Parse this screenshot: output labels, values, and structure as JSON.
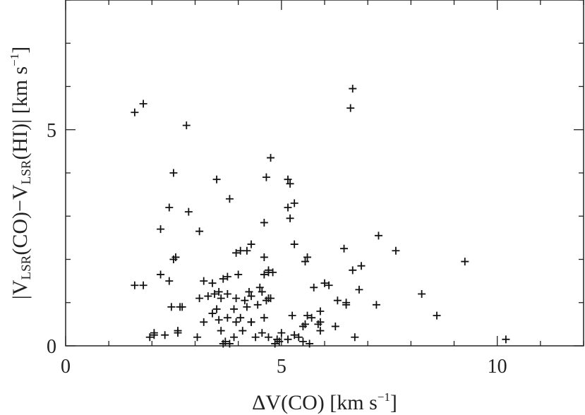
{
  "chart_data": {
    "type": "scatter",
    "title": "",
    "xlabel_parts": {
      "main": "ΔV(CO) [km s",
      "sup": "−1",
      "close": "]"
    },
    "ylabel_parts": {
      "v1": "V",
      "sub1": "LSR",
      "mid": "(CO)−V",
      "sub2": "LSR",
      "end": "(HI)",
      "units": "[km s",
      "sup": "−1",
      "close": "]"
    },
    "xlim": [
      0,
      12
    ],
    "ylim": [
      0,
      8
    ],
    "x_ticks": [
      0,
      5,
      10
    ],
    "x_tick_labels": [
      "0",
      "5",
      "10"
    ],
    "y_ticks": [
      0,
      5
    ],
    "y_tick_labels": [
      "0",
      "5"
    ],
    "marker": "+",
    "grid": false,
    "x": [
      1.6,
      1.8,
      1.6,
      1.8,
      2.8,
      2.5,
      2.4,
      2.85,
      2.2,
      3.5,
      3.8,
      3.1,
      2.55,
      2.5,
      2.2,
      2.4,
      2.45,
      2.65,
      2.6,
      2.7,
      1.95,
      2.05,
      4.75,
      4.65,
      5.15,
      5.2,
      5.3,
      5.15,
      5.2,
      4.6,
      4.05,
      4.3,
      4.2,
      3.95,
      4.6,
      5.3,
      4.7,
      4.7,
      4.8,
      4.0,
      3.75,
      3.65,
      3.4,
      3.2,
      3.1,
      3.3,
      3.45,
      3.55,
      3.6,
      3.75,
      3.95,
      4.25,
      4.3,
      4.15,
      4.5,
      4.55,
      4.7,
      4.75,
      4.65,
      5.55,
      5.6,
      6.0,
      6.1,
      5.75,
      6.45,
      6.65,
      6.85,
      6.5,
      6.8,
      7.2,
      7.25,
      7.65,
      9.25,
      8.25,
      8.6,
      6.3,
      6.25,
      6.5,
      6.7,
      5.85,
      5.9,
      5.6,
      5.55,
      5.7,
      5.5,
      5.3,
      5.4,
      5.25,
      5.0,
      4.95,
      4.7,
      4.55,
      4.4,
      4.3,
      4.05,
      3.95,
      3.75,
      3.55,
      3.4,
      3.2,
      3.05,
      2.6,
      2.05,
      2.3,
      3.7,
      3.65,
      3.9,
      4.9,
      5.15,
      4.85,
      5.65,
      4.1,
      4.3,
      3.8,
      3.6,
      3.9,
      4.2,
      3.5,
      4.45,
      4.6,
      6.65,
      5.5,
      10.2,
      5.9,
      4.6,
      5.9,
      6.6
    ],
    "y": [
      5.4,
      5.6,
      1.4,
      1.4,
      5.1,
      4.0,
      3.2,
      3.1,
      2.7,
      3.85,
      3.4,
      2.65,
      2.05,
      2.0,
      1.65,
      1.5,
      0.9,
      0.9,
      0.3,
      0.9,
      0.2,
      0.25,
      4.35,
      3.9,
      3.85,
      3.75,
      3.3,
      3.2,
      2.95,
      2.85,
      2.2,
      2.35,
      2.2,
      2.15,
      2.05,
      2.35,
      1.75,
      1.7,
      1.7,
      1.65,
      1.6,
      1.55,
      1.45,
      1.5,
      1.1,
      1.15,
      1.2,
      1.25,
      1.1,
      1.2,
      1.1,
      1.25,
      1.15,
      1.05,
      1.35,
      1.25,
      1.1,
      1.1,
      1.05,
      1.95,
      2.05,
      1.45,
      1.4,
      1.35,
      2.25,
      1.75,
      1.85,
      1.0,
      1.3,
      0.95,
      2.55,
      2.2,
      1.95,
      1.2,
      0.7,
      1.05,
      0.45,
      0.95,
      0.2,
      0.5,
      0.8,
      0.7,
      0.5,
      0.65,
      0.45,
      0.25,
      0.2,
      0.7,
      0.3,
      0.1,
      0.2,
      0.3,
      0.2,
      0.55,
      0.65,
      0.55,
      0.65,
      0.6,
      0.75,
      0.55,
      0.2,
      0.35,
      0.3,
      0.25,
      0.1,
      0.05,
      0.2,
      0.15,
      0.15,
      0.05,
      0.05,
      0.35,
      0.55,
      0.05,
      0.35,
      0.85,
      0.9,
      0.85,
      0.95,
      0.65,
      5.95,
      0.1,
      0.15,
      0.35,
      1.65,
      0.55,
      5.5
    ]
  }
}
